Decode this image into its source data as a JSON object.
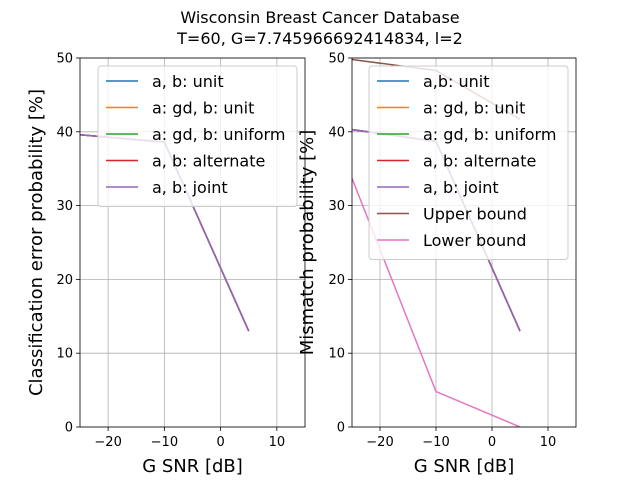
{
  "figure": {
    "title_lines": [
      "Wisconsin Breast Cancer Database",
      "T=60, G=7.745966692414834, l=2"
    ]
  },
  "chart_data": [
    {
      "type": "line",
      "title": "",
      "xlabel": "G SNR [dB]",
      "ylabel": "Classification error probability [%]",
      "xlim": [
        -25,
        15
      ],
      "ylim": [
        0,
        50
      ],
      "xticks": [
        -20,
        -10,
        0,
        10
      ],
      "yticks": [
        0,
        10,
        20,
        30,
        40,
        50
      ],
      "grid": true,
      "legend_position": "upper-right",
      "x": [
        -25,
        -10,
        5
      ],
      "series": [
        {
          "name": "a, b: unit",
          "color": "#1f77b4",
          "values": [
            39.6,
            38.6,
            13.0
          ]
        },
        {
          "name": "a: gd, b: unit",
          "color": "#ff7f0e",
          "values": [
            39.6,
            38.6,
            13.0
          ]
        },
        {
          "name": "a: gd, b: uniform",
          "color": "#2ca02c",
          "values": [
            39.6,
            38.6,
            13.0
          ]
        },
        {
          "name": "a, b: alternate",
          "color": "#d62728",
          "values": [
            39.6,
            38.6,
            13.0
          ]
        },
        {
          "name": "a, b: joint",
          "color": "#9467bd",
          "values": [
            39.6,
            38.6,
            13.0
          ]
        }
      ]
    },
    {
      "type": "line",
      "title": "",
      "xlabel": "G SNR [dB]",
      "ylabel": "Mismatch probability [%]",
      "xlim": [
        -25,
        15
      ],
      "ylim": [
        0,
        50
      ],
      "xticks": [
        -20,
        -10,
        0,
        10
      ],
      "yticks": [
        0,
        10,
        20,
        30,
        40,
        50
      ],
      "grid": true,
      "legend_position": "upper-right",
      "x": [
        -25,
        -10,
        5
      ],
      "series": [
        {
          "name": "a,b: unit",
          "color": "#1f77b4",
          "values": [
            40.3,
            38.7,
            13.0
          ]
        },
        {
          "name": "a: gd, b: unit",
          "color": "#ff7f0e",
          "values": [
            40.3,
            38.7,
            13.0
          ]
        },
        {
          "name": "a: gd, b: uniform",
          "color": "#2ca02c",
          "values": [
            40.3,
            38.7,
            13.0
          ]
        },
        {
          "name": "a, b: alternate",
          "color": "#d62728",
          "values": [
            40.3,
            38.7,
            13.0
          ]
        },
        {
          "name": "a, b: joint",
          "color": "#9467bd",
          "values": [
            40.3,
            38.7,
            13.0
          ]
        },
        {
          "name": "Upper bound",
          "color": "#8c564b",
          "values": [
            49.8,
            48.3,
            41.7
          ]
        },
        {
          "name": "Lower bound",
          "color": "#e377c2",
          "values": [
            33.7,
            4.8,
            0.0
          ]
        }
      ]
    }
  ]
}
